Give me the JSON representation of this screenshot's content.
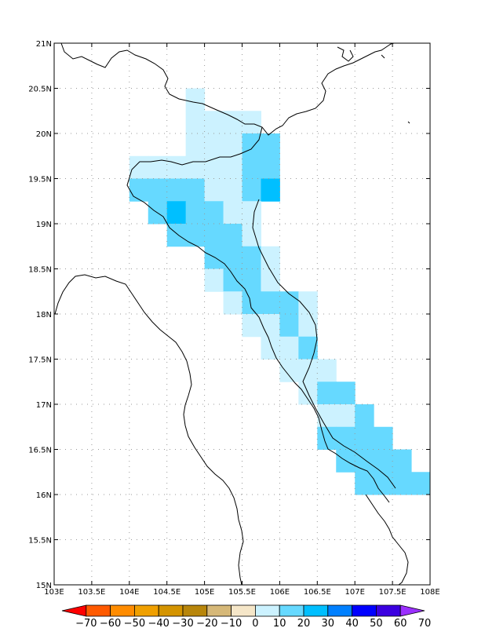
{
  "chart_data": {
    "type": "heatmap",
    "x_ticks": [
      "103E",
      "103.5E",
      "104E",
      "104.5E",
      "105E",
      "105.5E",
      "106E",
      "106.5E",
      "107E",
      "107.5E",
      "108E"
    ],
    "y_ticks": [
      "15N",
      "15.5N",
      "16N",
      "16.5N",
      "17N",
      "17.5N",
      "18N",
      "18.5N",
      "19N",
      "19.5N",
      "20N",
      "20.5N",
      "21N"
    ],
    "xlim": [
      103,
      108
    ],
    "ylim": [
      15,
      21
    ],
    "grid_step": 0.25,
    "grid": true,
    "colorbar": {
      "labels": [
        "-70",
        "-60",
        "-50",
        "-40",
        "-30",
        "-20",
        "-10",
        "0",
        "10",
        "20",
        "30",
        "40",
        "50",
        "60",
        "70"
      ],
      "colors": [
        "#ff0000",
        "#ff5a00",
        "#ff8c00",
        "#f0a000",
        "#d49400",
        "#b8860b",
        "#d6b878",
        "#f5e6c8",
        "#ccf2ff",
        "#66d9ff",
        "#00bfff",
        "#0080ff",
        "#0000ff",
        "#3b00e0",
        "#9b30ff"
      ]
    },
    "cells": [
      {
        "lon": 104.75,
        "lat": 20.25,
        "value": 5
      },
      {
        "lon": 105.0,
        "lat": 20.0,
        "value": 5
      },
      {
        "lon": 105.25,
        "lat": 20.0,
        "value": 5
      },
      {
        "lon": 105.5,
        "lat": 20.0,
        "value": 5
      },
      {
        "lon": 104.75,
        "lat": 20.0,
        "value": 5
      },
      {
        "lon": 104.75,
        "lat": 19.75,
        "value": 5
      },
      {
        "lon": 105.0,
        "lat": 19.75,
        "value": 5
      },
      {
        "lon": 105.25,
        "lat": 19.75,
        "value": 5
      },
      {
        "lon": 105.5,
        "lat": 19.75,
        "value": 15
      },
      {
        "lon": 105.75,
        "lat": 19.75,
        "value": 15
      },
      {
        "lon": 104.0,
        "lat": 19.5,
        "value": 5
      },
      {
        "lon": 104.25,
        "lat": 19.5,
        "value": 5
      },
      {
        "lon": 104.5,
        "lat": 19.5,
        "value": 5
      },
      {
        "lon": 104.75,
        "lat": 19.5,
        "value": 5
      },
      {
        "lon": 105.0,
        "lat": 19.5,
        "value": 5
      },
      {
        "lon": 105.25,
        "lat": 19.5,
        "value": 5
      },
      {
        "lon": 105.5,
        "lat": 19.5,
        "value": 15
      },
      {
        "lon": 105.75,
        "lat": 19.5,
        "value": 15
      },
      {
        "lon": 104.0,
        "lat": 19.25,
        "value": 15
      },
      {
        "lon": 104.25,
        "lat": 19.25,
        "value": 15
      },
      {
        "lon": 104.5,
        "lat": 19.25,
        "value": 15
      },
      {
        "lon": 104.75,
        "lat": 19.25,
        "value": 15
      },
      {
        "lon": 105.0,
        "lat": 19.25,
        "value": 5
      },
      {
        "lon": 105.25,
        "lat": 19.25,
        "value": 5
      },
      {
        "lon": 105.5,
        "lat": 19.25,
        "value": 15
      },
      {
        "lon": 105.75,
        "lat": 19.25,
        "value": 25
      },
      {
        "lon": 104.25,
        "lat": 19.0,
        "value": 15
      },
      {
        "lon": 104.5,
        "lat": 19.0,
        "value": 25
      },
      {
        "lon": 104.75,
        "lat": 19.0,
        "value": 15
      },
      {
        "lon": 105.0,
        "lat": 19.0,
        "value": 15
      },
      {
        "lon": 105.25,
        "lat": 19.0,
        "value": 5
      },
      {
        "lon": 105.5,
        "lat": 19.0,
        "value": 5
      },
      {
        "lon": 104.5,
        "lat": 18.75,
        "value": 15
      },
      {
        "lon": 104.75,
        "lat": 18.75,
        "value": 15
      },
      {
        "lon": 105.0,
        "lat": 18.75,
        "value": 15
      },
      {
        "lon": 105.25,
        "lat": 18.75,
        "value": 15
      },
      {
        "lon": 105.5,
        "lat": 18.75,
        "value": 5
      },
      {
        "lon": 105.0,
        "lat": 18.5,
        "value": 15
      },
      {
        "lon": 105.25,
        "lat": 18.5,
        "value": 15
      },
      {
        "lon": 105.5,
        "lat": 18.5,
        "value": 15
      },
      {
        "lon": 105.75,
        "lat": 18.5,
        "value": 5
      },
      {
        "lon": 105.0,
        "lat": 18.25,
        "value": 5
      },
      {
        "lon": 105.25,
        "lat": 18.25,
        "value": 15
      },
      {
        "lon": 105.5,
        "lat": 18.25,
        "value": 15
      },
      {
        "lon": 105.75,
        "lat": 18.25,
        "value": 5
      },
      {
        "lon": 105.25,
        "lat": 18.0,
        "value": 5
      },
      {
        "lon": 105.5,
        "lat": 18.0,
        "value": 15
      },
      {
        "lon": 105.75,
        "lat": 18.0,
        "value": 15
      },
      {
        "lon": 106.0,
        "lat": 18.0,
        "value": 15
      },
      {
        "lon": 106.25,
        "lat": 18.0,
        "value": 5
      },
      {
        "lon": 105.5,
        "lat": 17.75,
        "value": 5
      },
      {
        "lon": 105.75,
        "lat": 17.75,
        "value": 5
      },
      {
        "lon": 106.0,
        "lat": 17.75,
        "value": 15
      },
      {
        "lon": 106.25,
        "lat": 17.75,
        "value": 5
      },
      {
        "lon": 105.75,
        "lat": 17.5,
        "value": 5
      },
      {
        "lon": 106.0,
        "lat": 17.5,
        "value": 5
      },
      {
        "lon": 106.25,
        "lat": 17.5,
        "value": 15
      },
      {
        "lon": 106.0,
        "lat": 17.25,
        "value": 5
      },
      {
        "lon": 106.25,
        "lat": 17.25,
        "value": 5
      },
      {
        "lon": 106.5,
        "lat": 17.25,
        "value": 5
      },
      {
        "lon": 106.25,
        "lat": 17.0,
        "value": 5
      },
      {
        "lon": 106.5,
        "lat": 17.0,
        "value": 15
      },
      {
        "lon": 106.75,
        "lat": 17.0,
        "value": 15
      },
      {
        "lon": 106.5,
        "lat": 16.75,
        "value": 5
      },
      {
        "lon": 106.75,
        "lat": 16.75,
        "value": 5
      },
      {
        "lon": 107.0,
        "lat": 16.75,
        "value": 15
      },
      {
        "lon": 106.5,
        "lat": 16.5,
        "value": 15
      },
      {
        "lon": 106.75,
        "lat": 16.5,
        "value": 15
      },
      {
        "lon": 107.0,
        "lat": 16.5,
        "value": 15
      },
      {
        "lon": 107.25,
        "lat": 16.5,
        "value": 15
      },
      {
        "lon": 106.75,
        "lat": 16.25,
        "value": 15
      },
      {
        "lon": 107.0,
        "lat": 16.25,
        "value": 15
      },
      {
        "lon": 107.25,
        "lat": 16.25,
        "value": 15
      },
      {
        "lon": 107.5,
        "lat": 16.25,
        "value": 15
      },
      {
        "lon": 107.0,
        "lat": 16.0,
        "value": 15
      },
      {
        "lon": 107.25,
        "lat": 16.0,
        "value": 15
      },
      {
        "lon": 107.5,
        "lat": 16.0,
        "value": 15
      },
      {
        "lon": 107.75,
        "lat": 16.0,
        "value": 15
      }
    ]
  }
}
